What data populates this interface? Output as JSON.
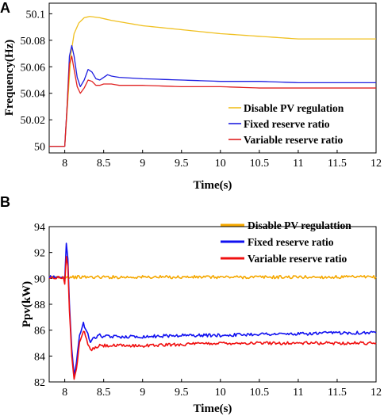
{
  "chart_data": [
    {
      "panel_label": "A",
      "type": "line",
      "xlabel": "Time(s)",
      "ylabel": "Frequency(Hz)",
      "xlim": [
        7.8,
        12
      ],
      "ylim": [
        49.995,
        50.108
      ],
      "xticks": [
        "8",
        "8.5",
        "9",
        "9.5",
        "10",
        "10.5",
        "11",
        "11.5",
        "12"
      ],
      "yticks": [
        "50",
        "50.02",
        "50.04",
        "50.06",
        "50.08",
        "50.1"
      ],
      "legend_position": "bottom-right",
      "series": [
        {
          "name": "Disable PV regulation",
          "color": "#f0c020",
          "x": [
            7.8,
            8.0,
            8.04,
            8.08,
            8.12,
            8.18,
            8.25,
            8.32,
            8.45,
            8.6,
            8.8,
            9.0,
            9.5,
            10.0,
            10.5,
            11.0,
            11.5,
            12.0
          ],
          "y": [
            50.0,
            50.0,
            50.035,
            50.07,
            50.085,
            50.093,
            50.097,
            50.098,
            50.097,
            50.095,
            50.093,
            50.091,
            50.088,
            50.085,
            50.083,
            50.081,
            50.081,
            50.081
          ]
        },
        {
          "name": "Fixed reserve ratio",
          "color": "#1f1fe0",
          "x": [
            7.8,
            8.0,
            8.03,
            8.06,
            8.09,
            8.12,
            8.16,
            8.2,
            8.25,
            8.3,
            8.35,
            8.4,
            8.45,
            8.5,
            8.55,
            8.6,
            8.7,
            9.0,
            9.5,
            10.0,
            10.5,
            11.0,
            11.5,
            12.0
          ],
          "y": [
            50.0,
            50.0,
            50.03,
            50.068,
            50.076,
            50.068,
            50.052,
            50.045,
            50.05,
            50.058,
            50.056,
            50.051,
            50.05,
            50.052,
            50.054,
            50.053,
            50.052,
            50.051,
            50.05,
            50.049,
            50.049,
            50.048,
            50.048,
            50.048
          ]
        },
        {
          "name": "Variable reserve ratio",
          "color": "#e02020",
          "x": [
            7.8,
            8.0,
            8.03,
            8.06,
            8.09,
            8.12,
            8.16,
            8.2,
            8.25,
            8.3,
            8.35,
            8.4,
            8.45,
            8.5,
            8.6,
            8.7,
            9.0,
            9.5,
            10.0,
            10.5,
            11.0,
            11.5,
            12.0
          ],
          "y": [
            50.0,
            50.0,
            50.03,
            50.062,
            50.068,
            50.058,
            50.045,
            50.04,
            50.044,
            50.05,
            50.049,
            50.046,
            50.046,
            50.047,
            50.047,
            50.046,
            50.046,
            50.045,
            50.045,
            50.044,
            50.044,
            50.044,
            50.044
          ]
        }
      ]
    },
    {
      "panel_label": "B",
      "type": "line",
      "xlabel": "Time(s)",
      "ylabel": "Ppv(kW)",
      "xlim": [
        7.8,
        12
      ],
      "ylim": [
        82,
        94
      ],
      "xticks": [
        "8",
        "8.5",
        "9",
        "9.5",
        "10",
        "10.5",
        "11",
        "11.5",
        "12"
      ],
      "yticks": [
        "82",
        "84",
        "86",
        "88",
        "90",
        "92",
        "94"
      ],
      "legend_position": "top-right",
      "series": [
        {
          "name": "Disable PV regulattion",
          "color": "#f5a800",
          "x": [
            7.8,
            8.0,
            8.5,
            9.0,
            9.5,
            10.0,
            10.5,
            11.0,
            11.5,
            12.0
          ],
          "y": [
            90.1,
            90.1,
            90.1,
            90.1,
            90.1,
            90.1,
            90.1,
            90.1,
            90.1,
            90.1
          ]
        },
        {
          "name": "Fixed reserve ratio",
          "color": "#1010f0",
          "x": [
            7.8,
            7.98,
            8.0,
            8.02,
            8.04,
            8.06,
            8.09,
            8.12,
            8.15,
            8.19,
            8.24,
            8.28,
            8.33,
            8.38,
            8.45,
            8.5,
            8.6,
            9.0,
            9.5,
            10.0,
            10.5,
            11.0,
            11.5,
            12.0
          ],
          "y": [
            90.1,
            90.1,
            89.8,
            92.7,
            91.5,
            88.0,
            84.5,
            82.6,
            83.5,
            85.6,
            86.5,
            86.0,
            85.1,
            85.4,
            85.6,
            85.5,
            85.5,
            85.5,
            85.6,
            85.6,
            85.7,
            85.7,
            85.8,
            85.8
          ]
        },
        {
          "name": "Variable reserve ratio",
          "color": "#f01010",
          "x": [
            7.8,
            7.98,
            8.0,
            8.02,
            8.04,
            8.06,
            8.09,
            8.12,
            8.15,
            8.19,
            8.24,
            8.28,
            8.33,
            8.38,
            8.45,
            8.5,
            8.6,
            9.0,
            9.5,
            10.0,
            10.5,
            11.0,
            11.5,
            12.0
          ],
          "y": [
            90.1,
            90.1,
            89.5,
            91.8,
            91.0,
            87.5,
            84.0,
            82.3,
            83.0,
            85.0,
            86.0,
            85.3,
            84.4,
            84.6,
            84.8,
            84.8,
            84.8,
            84.8,
            84.9,
            85.0,
            85.0,
            85.0,
            85.0,
            85.0
          ]
        }
      ]
    }
  ]
}
